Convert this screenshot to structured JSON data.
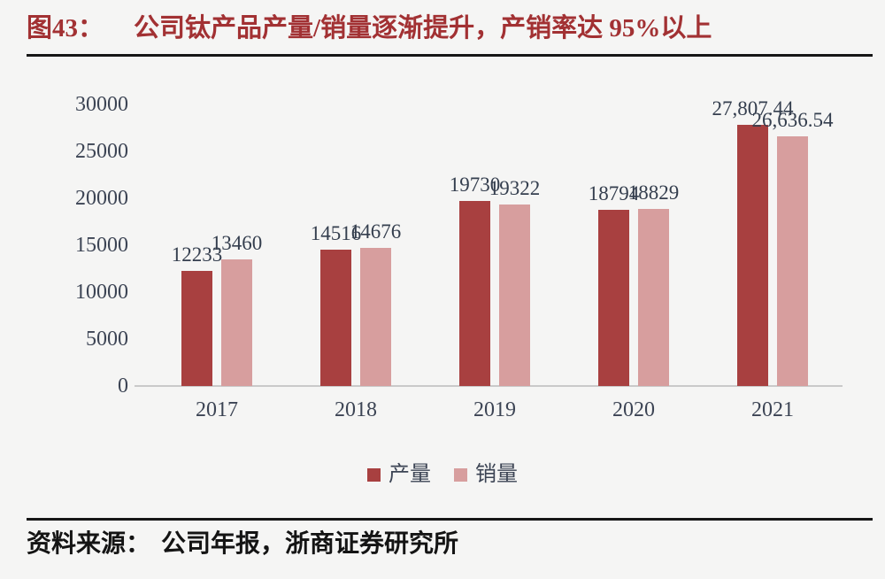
{
  "figure": {
    "label": "图43：",
    "title": "公司钛产品产量/销量逐渐提升，产销率达 95%以上"
  },
  "source": {
    "label": "资料来源：",
    "text": "公司年报，浙商证券研究所"
  },
  "colors": {
    "title_red": "#a23133",
    "production": "#a84040",
    "sales": "#d79e9e",
    "chart_text": "#3c4454",
    "rule_black": "#161616",
    "axis_line": "#c9c9c9",
    "background": "#f5f5f4"
  },
  "chart_data": {
    "type": "bar",
    "title": "公司钛产品产量/销量逐渐提升，产销率达95%以上",
    "categories": [
      "2017",
      "2018",
      "2019",
      "2020",
      "2021"
    ],
    "series": [
      {
        "name": "产量",
        "color_key": "production",
        "values": [
          12233,
          14516,
          19730,
          18794,
          27807.44
        ],
        "labels": [
          "12233",
          "14516",
          "19730",
          "18794",
          "27,807.44"
        ]
      },
      {
        "name": "销量",
        "color_key": "sales",
        "values": [
          13460,
          14676,
          19322,
          18829,
          26636.54
        ],
        "labels": [
          "13460",
          "14676",
          "19322",
          "18829",
          "26,636.54"
        ]
      }
    ],
    "xlabel": "",
    "ylabel": "",
    "ylim": [
      0,
      30000
    ],
    "ytick_step": 5000,
    "yticks": [
      "0",
      "5000",
      "10000",
      "15000",
      "20000",
      "25000",
      "30000"
    ],
    "grid": false,
    "legend_position": "bottom"
  }
}
